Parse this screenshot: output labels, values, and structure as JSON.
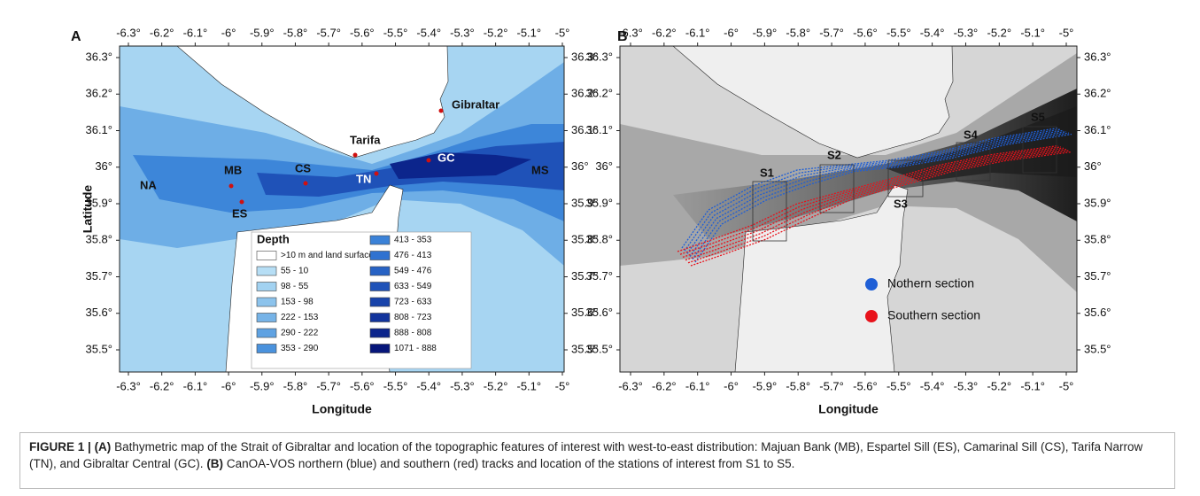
{
  "panels": [
    {
      "label": "A",
      "x_label": "Longitude",
      "y_label": "Latitude",
      "xticks": [
        {
          "value": -6.3,
          "label": "-6.3°"
        },
        {
          "value": -6.2,
          "label": "-6.2°"
        },
        {
          "value": -6.1,
          "label": "-6.1°"
        },
        {
          "value": -6,
          "label": "-6°"
        },
        {
          "value": -5.9,
          "label": "-5.9°"
        },
        {
          "value": -5.8,
          "label": "-5.8°"
        },
        {
          "value": -5.7,
          "label": "-5.7°"
        },
        {
          "value": -5.6,
          "label": "-5.6°"
        },
        {
          "value": -5.5,
          "label": "-5.5°"
        },
        {
          "value": -5.4,
          "label": "-5.4°"
        },
        {
          "value": -5.3,
          "label": "-5.3°"
        },
        {
          "value": -5.2,
          "label": "-5.2°"
        },
        {
          "value": -5.1,
          "label": "-5.1°"
        },
        {
          "value": -5,
          "label": "-5°"
        }
      ],
      "yticks": [
        {
          "value": 36.3,
          "label": "36.3°"
        },
        {
          "value": 36.2,
          "label": "36.2°"
        },
        {
          "value": 36.1,
          "label": "36.1°"
        },
        {
          "value": 36,
          "label": "36°"
        },
        {
          "value": 35.9,
          "label": "35.9°"
        },
        {
          "value": 35.8,
          "label": "35.8°"
        },
        {
          "value": 35.7,
          "label": "35.7°"
        },
        {
          "value": 35.6,
          "label": "35.6°"
        },
        {
          "value": 35.5,
          "label": "35.5°"
        }
      ],
      "places": [
        "Gibraltar",
        "Tarifa",
        "GC",
        "TN",
        "CS",
        "MB",
        "ES",
        "NA",
        "MS"
      ],
      "legend": {
        "title": "Depth",
        "items": [
          {
            "label": ">10 m and land surface",
            "color": "#ffffff"
          },
          {
            "label": "55 - 10",
            "color": "#b6def5"
          },
          {
            "label": "98 - 55",
            "color": "#a2d2f1"
          },
          {
            "label": "153 - 98",
            "color": "#8cc3ec"
          },
          {
            "label": "222 - 153",
            "color": "#76b3e7"
          },
          {
            "label": "290 - 222",
            "color": "#5fa2e2"
          },
          {
            "label": "353 - 290",
            "color": "#4a92dd"
          },
          {
            "label": "413 - 353",
            "color": "#3b82d8"
          },
          {
            "label": "476 - 413",
            "color": "#2f72d0"
          },
          {
            "label": "549 - 476",
            "color": "#2762c4"
          },
          {
            "label": "633 - 549",
            "color": "#1f52b8"
          },
          {
            "label": "723 - 633",
            "color": "#1843aa"
          },
          {
            "label": "808 - 723",
            "color": "#12349c"
          },
          {
            "label": "888 - 808",
            "color": "#0c258c"
          },
          {
            "label": "1071 - 888",
            "color": "#06167a"
          }
        ]
      }
    },
    {
      "label": "B",
      "x_label": "Longitude",
      "stations": [
        "S1",
        "S2",
        "S3",
        "S4",
        "S5"
      ],
      "legend": [
        {
          "label": "Nothern section",
          "color": "#1f5fd6"
        },
        {
          "label": "Southern section",
          "color": "#e8121b"
        }
      ]
    }
  ],
  "caption": {
    "figure": "FIGURE 1 |",
    "parts": [
      {
        "label": "(A)",
        "text": "Bathymetric map of the Strait of Gibraltar and location of the topographic features of interest with west-to-east distribution: Majuan Bank (MB), Espartel Sill (ES), Camarinal Sill (CS), Tarifa Narrow (TN), and Gibraltar Central (GC)."
      },
      {
        "label": "(B)",
        "text": "CanOA-VOS northern (blue) and southern (red) tracks and location of the stations of interest from S1 to S5."
      }
    ]
  }
}
